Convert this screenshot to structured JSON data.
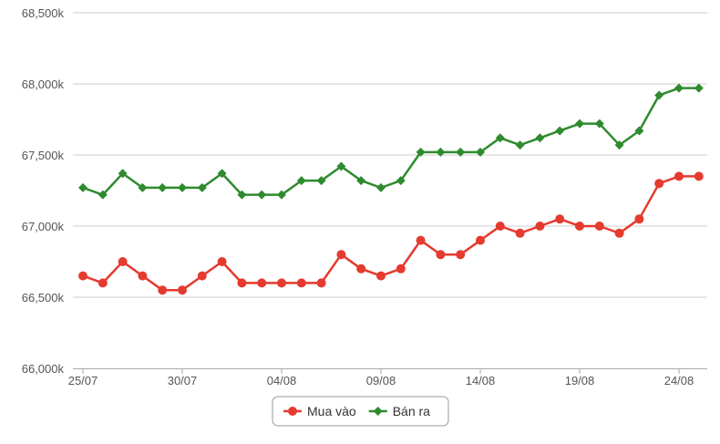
{
  "chart_data": {
    "type": "line",
    "x": [
      "25/07",
      "26/07",
      "27/07",
      "28/07",
      "29/07",
      "30/07",
      "31/07",
      "01/08",
      "02/08",
      "03/08",
      "04/08",
      "05/08",
      "06/08",
      "07/08",
      "08/08",
      "09/08",
      "10/08",
      "11/08",
      "12/08",
      "13/08",
      "14/08",
      "15/08",
      "16/08",
      "17/08",
      "18/08",
      "19/08",
      "20/08",
      "21/08",
      "22/08",
      "23/08",
      "24/08",
      "25/08"
    ],
    "x_tick_labels": [
      "25/07",
      "30/07",
      "04/08",
      "09/08",
      "14/08",
      "19/08",
      "24/08"
    ],
    "y_tick_labels": [
      "66,000k",
      "66,500k",
      "67,000k",
      "67,500k",
      "68,000k",
      "68,500k"
    ],
    "y_ticks": [
      66000,
      66500,
      67000,
      67500,
      68000,
      68500
    ],
    "ylim": [
      66000,
      68500
    ],
    "grid": true,
    "legend_position": "bottom-center",
    "series": [
      {
        "name": "Mua vào",
        "color": "#e53a2f",
        "marker": "circle",
        "values": [
          66650,
          66600,
          66750,
          66650,
          66550,
          66550,
          66650,
          66750,
          66600,
          66600,
          66600,
          66600,
          66600,
          66800,
          66700,
          66650,
          66700,
          66900,
          66800,
          66800,
          66900,
          67000,
          66950,
          67000,
          67050,
          67000,
          67000,
          66950,
          67050,
          67300,
          67350,
          67350
        ]
      },
      {
        "name": "Bán ra",
        "color": "#2e8b2e",
        "marker": "diamond",
        "values": [
          67270,
          67220,
          67370,
          67270,
          67270,
          67270,
          67270,
          67370,
          67220,
          67220,
          67220,
          67320,
          67320,
          67420,
          67320,
          67270,
          67320,
          67520,
          67520,
          67520,
          67520,
          67620,
          67570,
          67620,
          67670,
          67720,
          67720,
          67570,
          67670,
          67920,
          67970,
          67970
        ]
      }
    ]
  }
}
